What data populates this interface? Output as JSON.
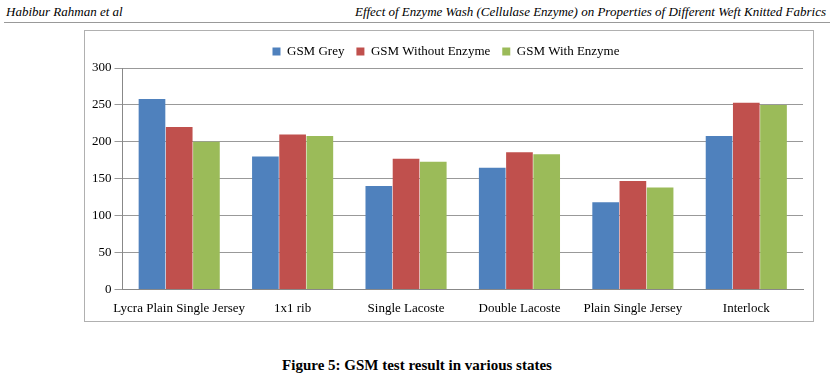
{
  "header": {
    "left": "Habibur Rahman et al",
    "right": "Effect of Enzyme Wash (Cellulase Enzyme) on Properties of Different Weft Knitted Fabrics"
  },
  "caption": "Figure 5: GSM test result in various states",
  "chart_data": {
    "type": "bar",
    "categories": [
      "Lycra Plain Single Jersey",
      "1x1 rib",
      "Single Lacoste",
      "Double Lacoste",
      "Plain Single Jersey",
      "Interlock"
    ],
    "series": [
      {
        "name": "GSM Grey",
        "color": "#4f81bd",
        "values": [
          258,
          180,
          140,
          165,
          118,
          208
        ]
      },
      {
        "name": "GSM Without Enzyme",
        "color": "#c0504d",
        "values": [
          220,
          210,
          177,
          186,
          147,
          253
        ]
      },
      {
        "name": "GSM With Enzyme",
        "color": "#9bbb59",
        "values": [
          200,
          208,
          173,
          183,
          138,
          250
        ]
      }
    ],
    "ylim": [
      0,
      300
    ],
    "yticks": [
      0,
      50,
      100,
      150,
      200,
      250,
      300
    ],
    "grid": true,
    "legend": "top"
  }
}
